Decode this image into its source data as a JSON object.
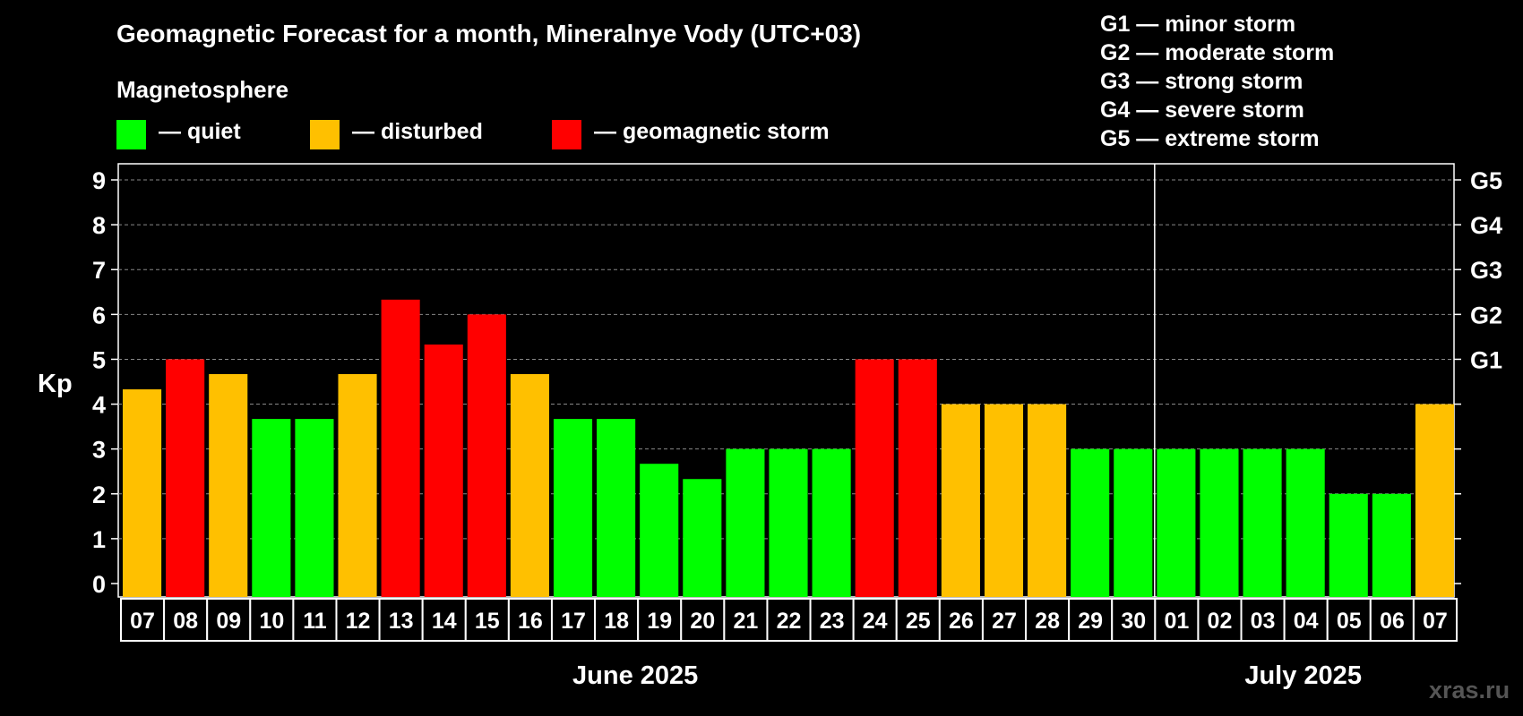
{
  "title": "Geomagnetic Forecast for a month, Mineralnye Vody (UTC+03)",
  "magnetosphere_label": "Magnetosphere",
  "legend": [
    {
      "label": "— quiet",
      "color": "#00ff00"
    },
    {
      "label": "— disturbed",
      "color": "#ffc000"
    },
    {
      "label": "— geomagnetic storm",
      "color": "#ff0000"
    }
  ],
  "g_levels": [
    "G1 — minor storm",
    "G2 — moderate storm",
    "G3 — strong storm",
    "G4 — severe storm",
    "G5 — extreme storm"
  ],
  "watermark": "xras.ru",
  "chart_data": {
    "type": "bar",
    "title": "Geomagnetic Forecast for a month, Mineralnye Vody (UTC+03)",
    "ylabel": "Kp",
    "ylim": [
      0,
      9
    ],
    "yticks": [
      "0",
      "1",
      "2",
      "3",
      "4",
      "5",
      "6",
      "7",
      "8",
      "9"
    ],
    "right_axis_labels": [
      {
        "value": 5,
        "label": "G1"
      },
      {
        "value": 6,
        "label": "G2"
      },
      {
        "value": 7,
        "label": "G3"
      },
      {
        "value": 8,
        "label": "G4"
      },
      {
        "value": 9,
        "label": "G5"
      }
    ],
    "month_labels": [
      {
        "label": "June 2025",
        "start": 0,
        "end": 23
      },
      {
        "label": "July 2025",
        "start": 24,
        "end": 30
      }
    ],
    "month_divider_after_index": 23,
    "categories": [
      "07",
      "08",
      "09",
      "10",
      "11",
      "12",
      "13",
      "14",
      "15",
      "16",
      "17",
      "18",
      "19",
      "20",
      "21",
      "22",
      "23",
      "24",
      "25",
      "26",
      "27",
      "28",
      "29",
      "30",
      "01",
      "02",
      "03",
      "04",
      "05",
      "06",
      "07"
    ],
    "values": [
      4.33,
      5,
      4.67,
      3.67,
      3.67,
      4.67,
      6.33,
      5.33,
      6,
      4.67,
      3.67,
      3.67,
      2.67,
      2.33,
      3,
      3,
      3,
      5,
      5,
      4,
      4,
      4,
      3,
      3,
      3,
      3,
      3,
      3,
      2,
      2,
      4
    ],
    "status": [
      "disturbed",
      "storm",
      "disturbed",
      "quiet",
      "quiet",
      "disturbed",
      "storm",
      "storm",
      "storm",
      "disturbed",
      "quiet",
      "quiet",
      "quiet",
      "quiet",
      "quiet",
      "quiet",
      "quiet",
      "storm",
      "storm",
      "disturbed",
      "disturbed",
      "disturbed",
      "quiet",
      "quiet",
      "quiet",
      "quiet",
      "quiet",
      "quiet",
      "quiet",
      "quiet",
      "disturbed"
    ],
    "status_colors": {
      "quiet": "#00ff00",
      "disturbed": "#ffc000",
      "storm": "#ff0000"
    }
  }
}
